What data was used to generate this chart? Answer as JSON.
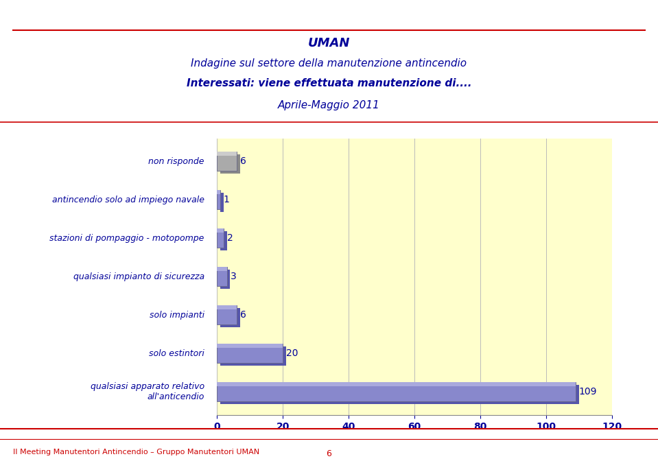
{
  "title_line1": "UMAN",
  "title_line2": "Indagine sul settore della manutenzione antincendio",
  "title_line3": "Interessati: viene effettuata manutenzione di....",
  "title_line4": "Aprile-Maggio 2011",
  "categories": [
    "non risponde",
    "antincendio solo ad impiego navale",
    "stazioni di pompaggio - motopompe",
    "qualsiasi impianto di sicurezza",
    "solo impianti",
    "solo estintori",
    "qualsiasi apparato relativo\nall'anticendio"
  ],
  "values": [
    6,
    1,
    2,
    3,
    6,
    20,
    109
  ],
  "bar_face_colors": [
    "#aaaaaa",
    "#8888cc",
    "#8888cc",
    "#8888cc",
    "#8888cc",
    "#8888cc",
    "#8888cc"
  ],
  "bar_top_colors": [
    "#cccccc",
    "#aaaadd",
    "#aaaadd",
    "#aaaadd",
    "#aaaadd",
    "#aaaadd",
    "#aaaadd"
  ],
  "bar_shadow_colors": [
    "#888888",
    "#5555aa",
    "#5555aa",
    "#5555aa",
    "#5555aa",
    "#5555aa",
    "#5555aa"
  ],
  "xlim": [
    0,
    120
  ],
  "xticks": [
    0,
    20,
    40,
    60,
    80,
    100,
    120
  ],
  "plot_bg_color": "#ffffcc",
  "fig_bg_color": "#ffffff",
  "title_color": "#000099",
  "label_color": "#000099",
  "axis_color": "#000099",
  "value_label_color": "#000099",
  "footer_text": "II Meeting Manutentori Antincendio – Gruppo Manutentori UMAN",
  "footer_number": "6",
  "red_line_color": "#cc0000",
  "grid_color": "#bbbbbb"
}
